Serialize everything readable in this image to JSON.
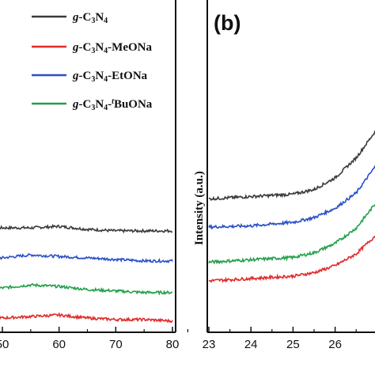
{
  "chart_data": [
    {
      "panel": "a",
      "type": "line",
      "xlabel": "",
      "ylabel": "",
      "xlim": [
        45,
        80
      ],
      "grid": false,
      "x_ticks": [
        "50",
        "60",
        "70",
        "80"
      ],
      "legend": {
        "placement": "top-right",
        "entries": [
          {
            "name": "g-C3N4",
            "parts": [
              {
                "t": "g",
                "i": true
              },
              {
                "t": "-C"
              },
              {
                "t": "3",
                "sub": true
              },
              {
                "t": "N"
              },
              {
                "t": "4",
                "sub": true
              }
            ],
            "color": "#3a3a3a"
          },
          {
            "name": "g-C3N4-MeONa",
            "parts": [
              {
                "t": "g",
                "i": true
              },
              {
                "t": "-C"
              },
              {
                "t": "3",
                "sub": true
              },
              {
                "t": "N"
              },
              {
                "t": "4",
                "sub": true
              },
              {
                "t": "-MeONa"
              }
            ],
            "color": "#e02a2a"
          },
          {
            "name": "g-C3N4-EtONa",
            "parts": [
              {
                "t": "g",
                "i": true
              },
              {
                "t": "-C"
              },
              {
                "t": "3",
                "sub": true
              },
              {
                "t": "N"
              },
              {
                "t": "4",
                "sub": true
              },
              {
                "t": "-EtONa"
              }
            ],
            "color": "#2a4fc8"
          },
          {
            "name": "g-C3N4-tBuONa",
            "parts": [
              {
                "t": "g",
                "i": true
              },
              {
                "t": "-C"
              },
              {
                "t": "3",
                "sub": true
              },
              {
                "t": "N"
              },
              {
                "t": "4",
                "sub": true
              },
              {
                "t": "-"
              },
              {
                "t": "t",
                "sup": true,
                "i": true
              },
              {
                "t": "BuONa"
              }
            ],
            "color": "#22a04a"
          }
        ]
      },
      "series": [
        {
          "name": "g-C3N4",
          "color": "#3a3a3a",
          "x": [
            45,
            50,
            55,
            60,
            65,
            70,
            75,
            80
          ],
          "y": [
            0.6,
            0.6,
            0.6,
            0.61,
            0.59,
            0.58,
            0.58,
            0.58
          ]
        },
        {
          "name": "g-C3N4-EtONa",
          "color": "#2a4fc8",
          "x": [
            45,
            50,
            55,
            60,
            65,
            70,
            75,
            80
          ],
          "y": [
            0.4,
            0.4,
            0.42,
            0.41,
            0.4,
            0.39,
            0.38,
            0.38
          ]
        },
        {
          "name": "g-C3N4-tBuONa",
          "color": "#22a04a",
          "x": [
            45,
            50,
            55,
            60,
            65,
            70,
            75,
            80
          ],
          "y": [
            0.2,
            0.2,
            0.22,
            0.21,
            0.19,
            0.18,
            0.17,
            0.17
          ]
        },
        {
          "name": "g-C3N4-MeONa",
          "color": "#e02a2a",
          "x": [
            45,
            50,
            55,
            60,
            65,
            70,
            75,
            80
          ],
          "y": [
            0.0,
            0.0,
            0.01,
            0.02,
            0.0,
            -0.01,
            -0.01,
            -0.02
          ]
        }
      ]
    },
    {
      "panel": "b",
      "type": "line",
      "panel_label": "(b)",
      "xlabel": "",
      "ylabel": "Intensity (a.u.)",
      "xlim": [
        23,
        27.4
      ],
      "grid": false,
      "x_ticks": [
        "23",
        "24",
        "25",
        "26"
      ],
      "series": [
        {
          "name": "g-C3N4",
          "color": "#3a3a3a",
          "x": [
            23,
            24,
            25,
            25.5,
            26,
            26.5,
            27,
            27.2,
            27.4
          ],
          "y": [
            0.7,
            0.72,
            0.74,
            0.78,
            0.88,
            1.05,
            1.3,
            1.75,
            2.05
          ]
        },
        {
          "name": "g-C3N4-EtONa",
          "color": "#2a4fc8",
          "x": [
            23,
            24,
            25,
            25.5,
            26,
            26.5,
            27,
            27.2,
            27.4
          ],
          "y": [
            0.46,
            0.47,
            0.5,
            0.54,
            0.62,
            0.75,
            1.0,
            1.28,
            1.4
          ]
        },
        {
          "name": "g-C3N4-tBuONa",
          "color": "#22a04a",
          "x": [
            23,
            24,
            25,
            25.5,
            26,
            26.5,
            27,
            27.2,
            27.4
          ],
          "y": [
            0.16,
            0.18,
            0.2,
            0.24,
            0.32,
            0.45,
            0.68,
            0.95,
            1.05
          ]
        },
        {
          "name": "g-C3N4-MeONa",
          "color": "#e02a2a",
          "x": [
            23,
            24,
            25,
            25.5,
            26,
            26.5,
            27,
            27.2,
            27.4
          ],
          "y": [
            0.0,
            0.02,
            0.04,
            0.07,
            0.13,
            0.23,
            0.4,
            0.6,
            0.72
          ]
        }
      ]
    }
  ]
}
